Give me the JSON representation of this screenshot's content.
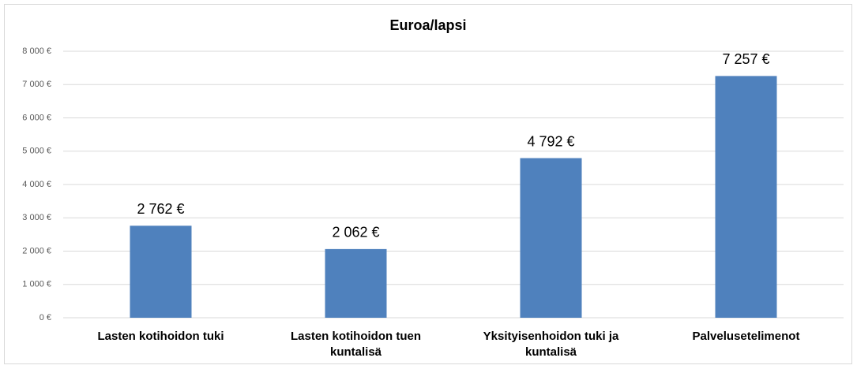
{
  "chart_data": {
    "type": "bar",
    "title": "Euroa/lapsi",
    "categories": [
      "Lasten kotihoidon tuki",
      "Lasten kotihoidon tuen kuntalisä",
      "Yksityisenhoidon tuki ja kuntalisä",
      "Palvelusetelimenot"
    ],
    "values": [
      2762,
      2062,
      4792,
      7257
    ],
    "value_labels": [
      "2 762 €",
      "2 062 €",
      "4 792 €",
      "7 257 €"
    ],
    "color": "#4f81bd",
    "ylim": [
      0,
      8000
    ],
    "yticks": [
      {
        "value": 0,
        "label": "0 €"
      },
      {
        "value": 1000,
        "label": "1 000 €"
      },
      {
        "value": 2000,
        "label": "2 000 €"
      },
      {
        "value": 3000,
        "label": "3 000 €"
      },
      {
        "value": 4000,
        "label": "4 000 €"
      },
      {
        "value": 5000,
        "label": "5 000 €"
      },
      {
        "value": 6000,
        "label": "6 000 €"
      },
      {
        "value": 7000,
        "label": "7 000 €"
      },
      {
        "value": 8000,
        "label": "8 000 €"
      }
    ],
    "grid": true
  }
}
